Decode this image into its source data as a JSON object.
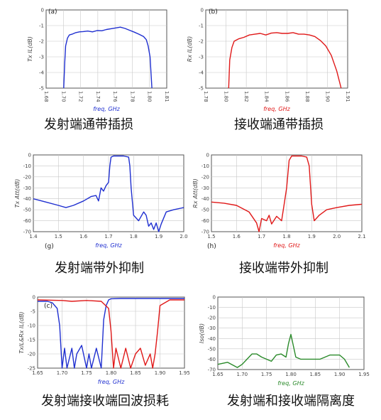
{
  "charts": [
    {
      "id": "a",
      "type": "line",
      "panel_label": "(a)",
      "caption": "发射端通带插损",
      "xlabel": "freq, GHz",
      "ylabel": "Tx IL(dB)",
      "xlim": [
        1.68,
        1.81
      ],
      "ylim": [
        -5,
        0
      ],
      "x_ticks": [
        "1.68",
        "1.70",
        "1.72",
        "1.74",
        "1.76",
        "1.78",
        "1.80",
        "1.81"
      ],
      "y_ticks": [
        "0",
        "-1",
        "-2",
        "-3",
        "-4",
        "-5"
      ],
      "color": "#1f2fd0",
      "series": [
        {
          "x": [
            1.699,
            1.7,
            1.701,
            1.703,
            1.705,
            1.708,
            1.712,
            1.716,
            1.72,
            1.725,
            1.73,
            1.735,
            1.74,
            1.745,
            1.75,
            1.755,
            1.76,
            1.765,
            1.77,
            1.775,
            1.78,
            1.785,
            1.788,
            1.79,
            1.792,
            1.794
          ],
          "y": [
            -5.0,
            -3.4,
            -2.3,
            -1.8,
            -1.6,
            -1.55,
            -1.45,
            -1.4,
            -1.38,
            -1.35,
            -1.4,
            -1.32,
            -1.33,
            -1.25,
            -1.2,
            -1.15,
            -1.1,
            -1.18,
            -1.3,
            -1.42,
            -1.55,
            -1.7,
            -1.9,
            -2.3,
            -3.0,
            -5.0
          ]
        }
      ]
    },
    {
      "id": "b",
      "type": "line",
      "panel_label": "(b)",
      "caption": "接收端通带插损",
      "xlabel": "freq, GHz",
      "ylabel": "Rx IL(dB)",
      "xlim": [
        1.78,
        1.91
      ],
      "ylim": [
        -5,
        0
      ],
      "x_ticks": [
        "1.78",
        "1.80",
        "1.82",
        "1.84",
        "1.86",
        "1.88",
        "1.90",
        "1.91"
      ],
      "y_ticks": [
        "0",
        "-1",
        "-2",
        "-3",
        "-4",
        "-5"
      ],
      "color": "#e01818",
      "series": [
        {
          "x": [
            1.801,
            1.802,
            1.804,
            1.806,
            1.81,
            1.815,
            1.82,
            1.825,
            1.83,
            1.835,
            1.84,
            1.845,
            1.85,
            1.855,
            1.86,
            1.865,
            1.87,
            1.875,
            1.88,
            1.885,
            1.89,
            1.895,
            1.9,
            1.904
          ],
          "y": [
            -5.0,
            -3.2,
            -2.4,
            -2.0,
            -1.85,
            -1.75,
            -1.6,
            -1.55,
            -1.5,
            -1.6,
            -1.48,
            -1.45,
            -1.5,
            -1.5,
            -1.45,
            -1.55,
            -1.55,
            -1.6,
            -1.7,
            -1.95,
            -2.3,
            -2.9,
            -3.9,
            -5.0
          ]
        }
      ]
    },
    {
      "id": "g",
      "type": "line",
      "panel_label": "(g)",
      "caption": "发射端带外抑制",
      "xlabel": "freq, GHz",
      "ylabel": "Tx Att(dB)",
      "xlim": [
        1.4,
        2.0
      ],
      "ylim": [
        -70,
        0
      ],
      "x_ticks": [
        "1.4",
        "1.5",
        "1.6",
        "1.7",
        "1.8",
        "1.9",
        "2.0"
      ],
      "y_ticks": [
        "0",
        "-10",
        "-20",
        "-30",
        "-40",
        "-50",
        "-60",
        "-70"
      ],
      "color": "#1f2fd0",
      "series": [
        {
          "x": [
            1.4,
            1.45,
            1.5,
            1.53,
            1.56,
            1.6,
            1.63,
            1.65,
            1.66,
            1.67,
            1.68,
            1.69,
            1.7,
            1.705,
            1.71,
            1.72,
            1.76,
            1.78,
            1.785,
            1.79,
            1.8,
            1.82,
            1.84,
            1.85,
            1.86,
            1.87,
            1.88,
            1.89,
            1.9,
            1.91,
            1.93,
            1.96,
            2.0
          ],
          "y": [
            -40,
            -43,
            -46,
            -48,
            -46,
            -42,
            -38,
            -37,
            -42,
            -30,
            -33,
            -28,
            -25,
            -10,
            -2,
            -1,
            -1,
            -2,
            -10,
            -30,
            -55,
            -60,
            -52,
            -55,
            -65,
            -62,
            -68,
            -62,
            -70,
            -63,
            -52,
            -50,
            -48
          ]
        }
      ]
    },
    {
      "id": "h",
      "type": "line",
      "panel_label": "(h)",
      "caption": "接收端带外抑制",
      "xlabel": "freq, GHz",
      "ylabel": "Rx Att(dB)",
      "xlim": [
        1.5,
        2.1
      ],
      "ylim": [
        -70,
        0
      ],
      "x_ticks": [
        "1.5",
        "1.6",
        "1.7",
        "1.8",
        "1.9",
        "2.0",
        "2.1"
      ],
      "y_ticks": [
        "0",
        "-10",
        "-20",
        "-30",
        "-40",
        "-50",
        "-60",
        "-70"
      ],
      "color": "#e01818",
      "series": [
        {
          "x": [
            1.5,
            1.55,
            1.6,
            1.65,
            1.68,
            1.69,
            1.7,
            1.72,
            1.73,
            1.74,
            1.76,
            1.78,
            1.79,
            1.8,
            1.81,
            1.82,
            1.86,
            1.88,
            1.89,
            1.9,
            1.91,
            1.93,
            1.96,
            2.0,
            2.05,
            2.1
          ],
          "y": [
            -43,
            -44,
            -46,
            -52,
            -62,
            -70,
            -58,
            -60,
            -55,
            -63,
            -56,
            -60,
            -45,
            -30,
            -5,
            -1,
            -1,
            -2,
            -10,
            -45,
            -60,
            -55,
            -50,
            -48,
            -46,
            -45
          ]
        }
      ]
    },
    {
      "id": "c",
      "type": "line",
      "panel_label": "(c)",
      "caption": "发射端接收端回波损耗",
      "xlabel": "freq, GHz",
      "ylabel": "TxIL&Rx IL(dB)",
      "xlim": [
        1.65,
        1.95
      ],
      "ylim": [
        -25,
        0
      ],
      "x_ticks": [
        "1.65",
        "1.70",
        "1.75",
        "1.80",
        "1.85",
        "1.90",
        "1.95"
      ],
      "y_ticks": [
        "0",
        "-5",
        "-10",
        "-15",
        "-20",
        "-25"
      ],
      "series": [
        {
          "color": "#1f2fd0",
          "x": [
            1.65,
            1.67,
            1.68,
            1.69,
            1.695,
            1.7,
            1.705,
            1.71,
            1.72,
            1.725,
            1.73,
            1.74,
            1.75,
            1.755,
            1.76,
            1.77,
            1.78,
            1.785,
            1.79,
            1.795,
            1.8,
            1.82,
            1.85,
            1.9,
            1.95
          ],
          "y": [
            -1.5,
            -1.5,
            -2,
            -4,
            -10,
            -25,
            -18,
            -25,
            -18,
            -25,
            -20,
            -17,
            -25,
            -20,
            -25,
            -18,
            -25,
            -8,
            -3,
            -1,
            -0.6,
            -0.5,
            -0.5,
            -0.5,
            -0.5
          ]
        },
        {
          "color": "#e01818",
          "x": [
            1.65,
            1.7,
            1.72,
            1.75,
            1.78,
            1.795,
            1.8,
            1.805,
            1.81,
            1.82,
            1.83,
            1.84,
            1.85,
            1.86,
            1.87,
            1.88,
            1.885,
            1.89,
            1.895,
            1.9,
            1.92,
            1.95
          ],
          "y": [
            -1,
            -1.2,
            -1.5,
            -1.2,
            -1.5,
            -4,
            -12,
            -25,
            -18,
            -25,
            -18,
            -25,
            -20,
            -18,
            -24,
            -20,
            -25,
            -20,
            -12,
            -3,
            -1,
            -1
          ]
        }
      ]
    },
    {
      "id": "iso",
      "type": "line",
      "panel_label": "",
      "caption": "发射端和接收端隔离度",
      "xlabel": "freq, GHz",
      "ylabel": "Iso(dB)",
      "xlim": [
        1.65,
        1.95
      ],
      "ylim": [
        -70,
        0
      ],
      "x_ticks": [
        "1.65",
        "1.70",
        "1.75",
        "1.80",
        "1.85",
        "1.90",
        "1.95"
      ],
      "y_ticks": [
        "0",
        "-10",
        "-20",
        "-30",
        "-40",
        "-50",
        "-60",
        "-70"
      ],
      "color": "#2a8a2a",
      "series": [
        {
          "x": [
            1.65,
            1.67,
            1.69,
            1.7,
            1.71,
            1.72,
            1.73,
            1.74,
            1.76,
            1.77,
            1.78,
            1.79,
            1.795,
            1.8,
            1.81,
            1.82,
            1.84,
            1.86,
            1.87,
            1.88,
            1.9,
            1.91,
            1.92
          ],
          "y": [
            -65,
            -63,
            -68,
            -65,
            -60,
            -55,
            -55,
            -58,
            -62,
            -56,
            -55,
            -58,
            -45,
            -36,
            -58,
            -60,
            -60,
            -60,
            -58,
            -56,
            -56,
            -60,
            -68
          ]
        }
      ]
    }
  ]
}
